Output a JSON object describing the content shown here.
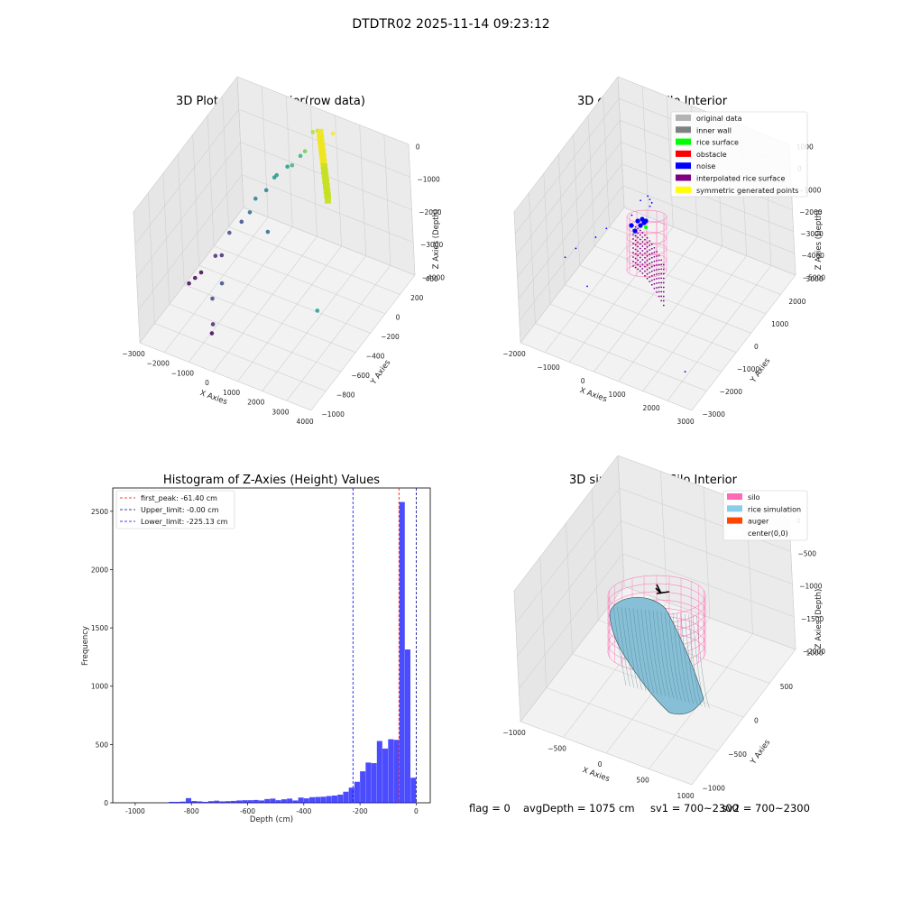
{
  "figure": {
    "suptitle": "DTDTR02 2025-11-14 09:23:12",
    "footer": {
      "flag": "flag = 0",
      "avg_depth": "avgDepth = 1075 cm",
      "sv1": "sv1 = 700~2300",
      "sv2": "sv2 = 700~2300"
    }
  },
  "chart_data": [
    {
      "type": "scatter",
      "projection": "3d",
      "title": "3D Plot of Silo Interior(row data)",
      "xlabel": "X Axies",
      "ylabel": "Y Axies",
      "zlabel": "Z Axies (Depth)",
      "xticks": [
        "−3000",
        "−2000",
        "−1000",
        "0",
        "1000",
        "2000",
        "3000",
        "4000"
      ],
      "yticks": [
        "400",
        "200",
        "0",
        "−200",
        "−400",
        "−600",
        "−800",
        "−1000"
      ],
      "zticks": [
        "0",
        "−1000",
        "−2000",
        "−3000",
        "−4000"
      ],
      "xlim": [
        -3000,
        4000
      ],
      "ylim": [
        -1000,
        400
      ],
      "zlim": [
        -4000,
        0
      ],
      "colormap": "viridis",
      "points": [
        {
          "x": -2800,
          "y": -400,
          "z": -3900
        },
        {
          "x": -2700,
          "y": -350,
          "z": -3850
        },
        {
          "x": -2600,
          "y": -300,
          "z": -3800
        },
        {
          "x": -2300,
          "y": -200,
          "z": -3500
        },
        {
          "x": -2200,
          "y": -150,
          "z": -3600
        },
        {
          "x": -2000,
          "y": -100,
          "z": -3000
        },
        {
          "x": -1800,
          "y": 0,
          "z": -2900
        },
        {
          "x": -1600,
          "y": 50,
          "z": -2700
        },
        {
          "x": -1500,
          "y": 100,
          "z": -2400
        },
        {
          "x": -1200,
          "y": 150,
          "z": -2200
        },
        {
          "x": -1000,
          "y": 200,
          "z": -1900
        },
        {
          "x": -900,
          "y": 200,
          "z": -1800
        },
        {
          "x": -600,
          "y": 250,
          "z": -1600
        },
        {
          "x": -400,
          "y": 250,
          "z": -1500
        },
        {
          "x": -200,
          "y": 300,
          "z": -1300
        },
        {
          "x": 0,
          "y": 300,
          "z": -1100
        },
        {
          "x": -1200,
          "y": -600,
          "z": -3300
        },
        {
          "x": -1100,
          "y": -500,
          "z": -3100
        },
        {
          "x": -900,
          "y": -700,
          "z": -3700
        },
        {
          "x": -800,
          "y": -750,
          "z": -3800
        },
        {
          "x": -400,
          "y": -100,
          "z": -2500
        },
        {
          "x": 200,
          "y": 350,
          "z": -600
        },
        {
          "x": 400,
          "y": 350,
          "z": -500
        },
        {
          "x": 1200,
          "y": 300,
          "z": -200
        },
        {
          "x": 3800,
          "y": -800,
          "z": -1600
        }
      ]
    },
    {
      "type": "scatter",
      "projection": "3d",
      "title": "3D classify of Silo Interior",
      "xlabel": "X Axies",
      "ylabel": "Y Axies",
      "zlabel": "Z Axies (Depth)",
      "xticks": [
        "−2000",
        "−1000",
        "0",
        "1000",
        "2000",
        "3000"
      ],
      "yticks": [
        "3000",
        "2000",
        "1000",
        "0",
        "−1000",
        "−2000",
        "−3000"
      ],
      "zticks": [
        "1000",
        "0",
        "−1000",
        "−2000",
        "−3000",
        "−4000",
        "−5000"
      ],
      "xlim": [
        -2500,
        3500
      ],
      "ylim": [
        -3000,
        3000
      ],
      "zlim": [
        -5000,
        1000
      ],
      "legend": {
        "location": "top-right",
        "entries": [
          {
            "label": "original data",
            "color": "#b3b3b3"
          },
          {
            "label": "inner wall",
            "color": "#808080"
          },
          {
            "label": "rice surface",
            "color": "#00ff00"
          },
          {
            "label": "obstacle",
            "color": "#ff0000"
          },
          {
            "label": "noise",
            "color": "#0000ff"
          },
          {
            "label": "interpolated rice surface",
            "color": "#800080"
          },
          {
            "label": "symmetric generated points",
            "color": "#ffff00"
          }
        ]
      },
      "noise_points": [
        {
          "x": -2200,
          "y": -800,
          "z": -3200
        },
        {
          "x": -2000,
          "y": -500,
          "z": -3000
        },
        {
          "x": -1600,
          "y": 0,
          "z": -2800
        },
        {
          "x": -1400,
          "y": 300,
          "z": -2600
        },
        {
          "x": -1200,
          "y": -1200,
          "z": -3600
        },
        {
          "x": -800,
          "y": 800,
          "z": -2200
        },
        {
          "x": -400,
          "y": 1200,
          "z": -2000
        },
        {
          "x": 3000,
          "y": -2500,
          "z": -4000
        },
        {
          "x": -200,
          "y": 400,
          "z": -800
        },
        {
          "x": 200,
          "y": 400,
          "z": -700
        },
        {
          "x": 0,
          "y": 500,
          "z": -600
        },
        {
          "x": 100,
          "y": 450,
          "z": -650
        }
      ]
    },
    {
      "type": "bar",
      "title": "Histogram of Z-Axies (Height) Values",
      "xlabel": "Depth (cm)",
      "ylabel": "Frequency",
      "xlim": [
        -1080,
        50
      ],
      "ylim": [
        0,
        2700
      ],
      "xticks": [
        -1000,
        -800,
        -600,
        -400,
        -200,
        0
      ],
      "yticks": [
        0,
        500,
        1000,
        1500,
        2000,
        2500
      ],
      "bin_width": 20,
      "bar_color": "#0000ff",
      "bins": [
        {
          "x0": -880,
          "count": 8
        },
        {
          "x0": -860,
          "count": 8
        },
        {
          "x0": -840,
          "count": 10
        },
        {
          "x0": -820,
          "count": 40
        },
        {
          "x0": -800,
          "count": 15
        },
        {
          "x0": -780,
          "count": 12
        },
        {
          "x0": -760,
          "count": 8
        },
        {
          "x0": -740,
          "count": 14
        },
        {
          "x0": -720,
          "count": 18
        },
        {
          "x0": -700,
          "count": 12
        },
        {
          "x0": -680,
          "count": 14
        },
        {
          "x0": -660,
          "count": 16
        },
        {
          "x0": -640,
          "count": 20
        },
        {
          "x0": -620,
          "count": 22
        },
        {
          "x0": -600,
          "count": 22
        },
        {
          "x0": -580,
          "count": 24
        },
        {
          "x0": -560,
          "count": 20
        },
        {
          "x0": -540,
          "count": 32
        },
        {
          "x0": -520,
          "count": 36
        },
        {
          "x0": -500,
          "count": 22
        },
        {
          "x0": -480,
          "count": 30
        },
        {
          "x0": -460,
          "count": 36
        },
        {
          "x0": -440,
          "count": 20
        },
        {
          "x0": -420,
          "count": 45
        },
        {
          "x0": -400,
          "count": 38
        },
        {
          "x0": -380,
          "count": 48
        },
        {
          "x0": -360,
          "count": 50
        },
        {
          "x0": -340,
          "count": 52
        },
        {
          "x0": -320,
          "count": 58
        },
        {
          "x0": -300,
          "count": 62
        },
        {
          "x0": -280,
          "count": 70
        },
        {
          "x0": -260,
          "count": 95
        },
        {
          "x0": -240,
          "count": 130
        },
        {
          "x0": -220,
          "count": 180
        },
        {
          "x0": -200,
          "count": 270
        },
        {
          "x0": -180,
          "count": 345
        },
        {
          "x0": -160,
          "count": 340
        },
        {
          "x0": -140,
          "count": 530
        },
        {
          "x0": -120,
          "count": 465
        },
        {
          "x0": -100,
          "count": 545
        },
        {
          "x0": -80,
          "count": 540
        },
        {
          "x0": -60,
          "count": 2580
        },
        {
          "x0": -40,
          "count": 1315
        },
        {
          "x0": -20,
          "count": 215
        }
      ],
      "vlines": [
        {
          "label": "first_peak: -61.40 cm",
          "x": -61.4,
          "color": "#ff0000"
        },
        {
          "label": "Upper_limit: -0.00 cm",
          "x": 0,
          "color": "#00008b"
        },
        {
          "label": "Lower_limit: -225.13 cm",
          "x": -225.13,
          "color": "#0000ff"
        }
      ],
      "legend": "top-left"
    },
    {
      "type": "surface",
      "projection": "3d",
      "title": "3D simulation of Silo Interior",
      "xlabel": "X Axies",
      "ylabel": "Y Axies",
      "zlabel": "Z Axies (Depth)",
      "xticks": [
        "−1000",
        "−500",
        "0",
        "500",
        "1000"
      ],
      "yticks": [
        "1000",
        "500",
        "0",
        "−500",
        "−1000"
      ],
      "zticks": [
        "0",
        "−500",
        "−1000",
        "−1500",
        "−2000"
      ],
      "xlim": [
        -1300,
        1300
      ],
      "ylim": [
        -1300,
        1300
      ],
      "zlim": [
        -2300,
        100
      ],
      "legend": {
        "location": "top-right",
        "entries": [
          {
            "label": "silo",
            "color": "#ff69b4"
          },
          {
            "label": "rice simulation",
            "color": "#87ceeb"
          },
          {
            "label": "auger",
            "color": "#ff4500"
          },
          {
            "label": "center(0,0)",
            "color": "#ffffff"
          }
        ]
      }
    }
  ]
}
